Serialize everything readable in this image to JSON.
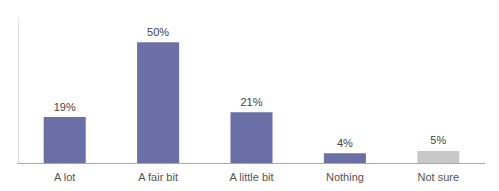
{
  "chart_data": {
    "type": "bar",
    "categories": [
      "A lot",
      "A fair bit",
      "A little bit",
      "Nothing",
      "Not sure"
    ],
    "values": [
      19,
      50,
      21,
      4,
      5
    ],
    "value_labels": [
      "19%",
      "50%",
      "21%",
      "4%",
      "5%"
    ],
    "colors": [
      "#6b6fa8",
      "#6b6fa8",
      "#6b6fa8",
      "#6b6fa8",
      "#c8c8c8"
    ],
    "ylim": [
      0,
      60
    ],
    "data_labels": true,
    "tick_labels": "x",
    "grid": false
  }
}
